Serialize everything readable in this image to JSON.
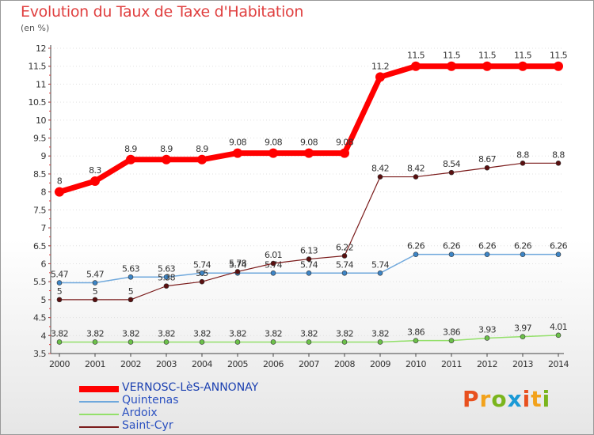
{
  "header": {
    "title": "Evolution du Taux de Taxe d'Habitation",
    "subtitle": "(en %)"
  },
  "logo": {
    "text": "Proxiti",
    "colors": [
      "#e8501e",
      "#f2a21b",
      "#7ab51d",
      "#1b9ad6",
      "#e8501e",
      "#f2a21b",
      "#7ab51d"
    ]
  },
  "chart_data": {
    "type": "line",
    "title": "Evolution du Taux de Taxe d'Habitation",
    "subtitle": "(en %)",
    "xlabel": "",
    "ylabel": "",
    "x": [
      "2000",
      "2001",
      "2002",
      "2003",
      "2004",
      "2005",
      "2006",
      "2007",
      "2008",
      "2009",
      "2010",
      "2011",
      "2012",
      "2013",
      "2014"
    ],
    "ylim": [
      3.5,
      12
    ],
    "yticks": [
      "3.5",
      "4",
      "4.5",
      "5",
      "5.5",
      "6",
      "6.5",
      "7",
      "7.5",
      "8",
      "8.5",
      "9",
      "9.5",
      "10",
      "10.5",
      "11",
      "11.5",
      "12"
    ],
    "legend_position": "bottom-left",
    "series": [
      {
        "name": "VERNOSC-LèS-ANNONAY",
        "color": "#ff0000",
        "marker": "#c00000",
        "width": 7,
        "values": [
          8,
          8.3,
          8.9,
          8.9,
          8.9,
          9.08,
          9.08,
          9.08,
          9.08,
          11.2,
          11.5,
          11.5,
          11.5,
          11.5,
          11.5
        ],
        "labels": [
          "8",
          "8.3",
          "8.9",
          "8.9",
          "8.9",
          "9.08",
          "9.08",
          "9.08",
          "9.08",
          "11.2",
          "11.5",
          "11.5",
          "11.5",
          "11.5",
          "11.5"
        ]
      },
      {
        "name": "Quintenas",
        "color": "#6fa8dc",
        "marker": "#3d85c6",
        "width": 1.5,
        "values": [
          5.47,
          5.47,
          5.63,
          5.63,
          5.74,
          5.74,
          5.74,
          5.74,
          5.74,
          5.74,
          6.26,
          6.26,
          6.26,
          6.26,
          6.26
        ],
        "labels": [
          "5.47",
          "5.47",
          "5.63",
          "5.63",
          "5.74",
          "5.74",
          "5.74",
          "5.74",
          "5.74",
          "5.74",
          "6.26",
          "6.26",
          "6.26",
          "6.26",
          "6.26"
        ]
      },
      {
        "name": "Ardoix",
        "color": "#93e06a",
        "marker": "#6cc04a",
        "width": 1.5,
        "values": [
          3.82,
          3.82,
          3.82,
          3.82,
          3.82,
          3.82,
          3.82,
          3.82,
          3.82,
          3.82,
          3.86,
          3.86,
          3.93,
          3.97,
          4.01
        ],
        "labels": [
          "3.82",
          "3.82",
          "3.82",
          "3.82",
          "3.82",
          "3.82",
          "3.82",
          "3.82",
          "3.82",
          "3.82",
          "3.86",
          "3.86",
          "3.93",
          "3.97",
          "4.01"
        ]
      },
      {
        "name": "Saint-Cyr",
        "color": "#7a1a1a",
        "marker": "#5a0f0f",
        "width": 1.2,
        "values": [
          5,
          5,
          5,
          5.38,
          5.5,
          5.78,
          6.01,
          6.13,
          6.22,
          8.42,
          8.42,
          8.54,
          8.67,
          8.8,
          8.8
        ],
        "labels": [
          "5",
          "5",
          "5",
          "5.38",
          "5.5",
          "5.78",
          "6.01",
          "6.13",
          "6.22",
          "8.42",
          "8.42",
          "8.54",
          "8.67",
          "8.8",
          "8.8"
        ]
      }
    ]
  }
}
